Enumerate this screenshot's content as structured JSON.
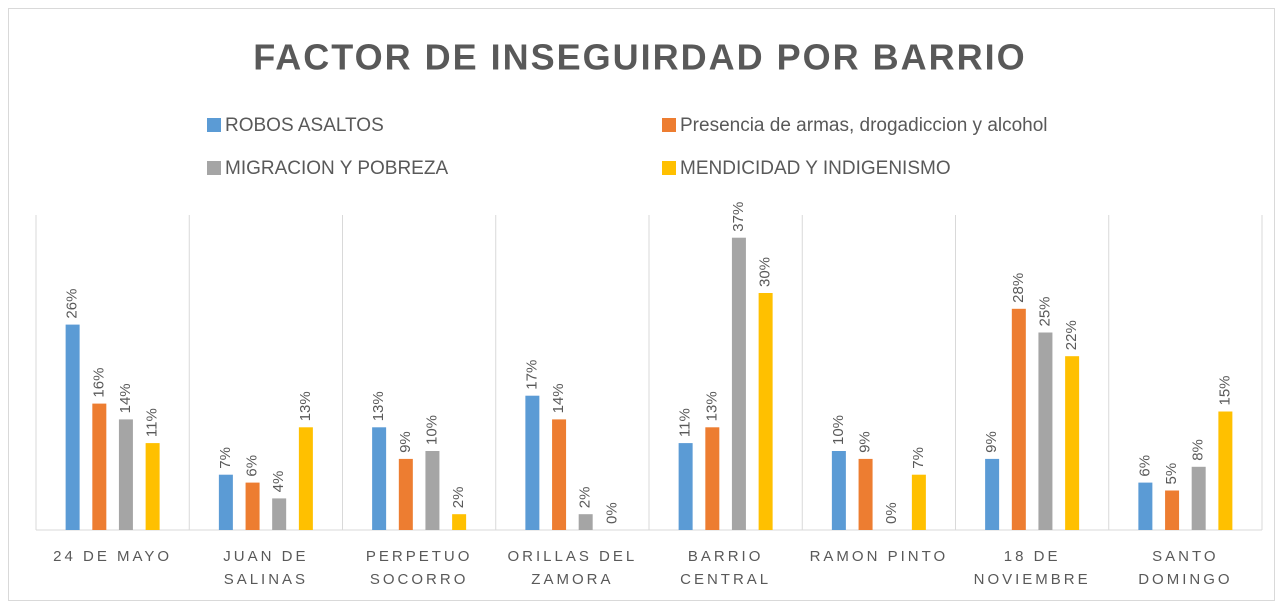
{
  "chart_data": {
    "type": "bar",
    "title": "FACTOR DE INSEGUIRDAD POR BARRIO",
    "categories": [
      "24 DE MAYO",
      "JUAN DE SALINAS",
      "PERPETUO SOCORRO",
      "ORILLAS DEL ZAMORA",
      "BARRIO CENTRAL",
      "RAMON PINTO",
      "18 DE NOVIEMBRE",
      "SANTO DOMINGO"
    ],
    "series": [
      {
        "name": "ROBOS ASALTOS",
        "color": "#5b9bd5",
        "values": [
          26,
          7,
          13,
          17,
          11,
          10,
          9,
          6
        ],
        "value_labels": [
          "26%",
          "7%",
          "13%",
          "17%",
          "11%",
          "10%",
          "9%",
          "6%"
        ]
      },
      {
        "name": "Presencia de armas, drogadiccion y alcohol",
        "color": "#ed7d31",
        "values": [
          16,
          6,
          9,
          14,
          13,
          9,
          28,
          5
        ],
        "value_labels": [
          "16%",
          "6%",
          "9%",
          "14%",
          "13%",
          "9%",
          "28%",
          "5%"
        ]
      },
      {
        "name": "MIGRACION Y POBREZA",
        "color": "#a5a5a5",
        "values": [
          14,
          4,
          10,
          2,
          37,
          0,
          25,
          8
        ],
        "value_labels": [
          "14%",
          "4%",
          "10%",
          "2%",
          "37%",
          "0%",
          "25%",
          "8%"
        ]
      },
      {
        "name": "MENDICIDAD Y INDIGENISMO",
        "color": "#ffc000",
        "values": [
          11,
          13,
          2,
          0,
          30,
          7,
          22,
          15
        ],
        "value_labels": [
          "11%",
          "13%",
          "2%",
          "0%",
          "30%",
          "7%",
          "22%",
          "15%"
        ]
      }
    ],
    "legend": "top"
  }
}
